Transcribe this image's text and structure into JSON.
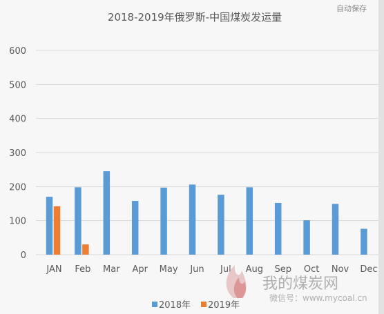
{
  "header": {
    "autosave_label": "自动保存"
  },
  "watermark": {
    "name": "我的煤炭网",
    "account_prefix": "微信号：",
    "url": "www.mycoal.cn"
  },
  "colors": {
    "series_2018": "#5b9bd5",
    "series_2019": "#ed7d31"
  },
  "chart_data": {
    "type": "bar",
    "title": "2018-2019年俄罗斯-中国煤炭发运量",
    "xlabel": "",
    "ylabel": "",
    "ylim": [
      0,
      600
    ],
    "yticks": [
      0,
      100,
      200,
      300,
      400,
      500,
      600
    ],
    "grid": true,
    "legend_position": "bottom",
    "categories": [
      "JAN",
      "Feb",
      "Mar",
      "Apr",
      "May",
      "Jun",
      "Jul",
      "Aug",
      "Sep",
      "Oct",
      "Nov",
      "Dec"
    ],
    "series": [
      {
        "name": "2018年",
        "values": [
          170,
          198,
          245,
          158,
          197,
          206,
          176,
          198,
          152,
          101,
          149,
          76
        ]
      },
      {
        "name": "2019年",
        "values": [
          142,
          30,
          null,
          null,
          null,
          null,
          null,
          null,
          null,
          null,
          null,
          null
        ]
      }
    ]
  }
}
